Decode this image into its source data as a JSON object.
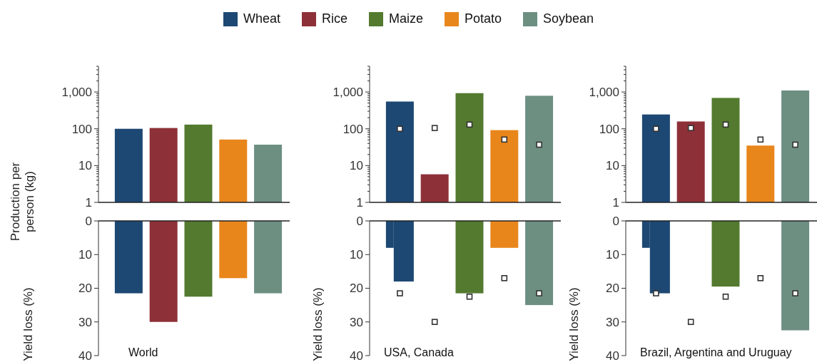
{
  "chart_data": [
    {
      "type": "bar",
      "ylabel": "Production per person (kg)",
      "legend": "top",
      "categories": [
        null,
        null,
        null,
        null,
        null
      ],
      "tick_labels": "y",
      "log": true,
      "ylim": [
        1,
        5000
      ],
      "yticks": [
        1,
        {
          "value": 2,
          "label": null
        },
        {
          "value": 3,
          "label": null
        },
        {
          "value": 4,
          "label": null
        },
        {
          "value": 5,
          "label": null
        },
        {
          "value": 6,
          "label": null
        },
        {
          "value": 7,
          "label": null
        },
        {
          "value": 8,
          "label": null
        },
        {
          "value": 9,
          "label": null
        },
        10,
        {
          "value": 20,
          "label": null
        },
        {
          "value": 30,
          "label": null
        },
        {
          "value": 40,
          "label": null
        },
        {
          "value": 50,
          "label": null
        },
        {
          "value": 60,
          "label": null
        },
        {
          "value": 70,
          "label": null
        },
        {
          "value": 80,
          "label": null
        },
        {
          "value": 90,
          "label": null
        },
        100,
        {
          "value": 200,
          "label": null
        },
        {
          "value": 300,
          "label": null
        },
        {
          "value": 400,
          "label": null
        },
        {
          "value": 500,
          "label": null
        },
        {
          "value": 600,
          "label": null
        },
        {
          "value": 700,
          "label": null
        },
        {
          "value": 800,
          "label": null
        },
        {
          "value": 900,
          "label": null
        },
        {
          "value": 1000,
          "label": "1,000"
        },
        {
          "value": 2000,
          "label": null
        },
        {
          "value": 3000,
          "label": null
        },
        {
          "value": 4000,
          "label": null
        },
        {
          "value": 5000,
          "label": null
        }
      ],
      "series": [
        {
          "name": "Wheat",
          "color": "#1d4873",
          "values": [
            100,
            null,
            null,
            null,
            null
          ]
        },
        {
          "name": "Rice",
          "color": "#8e3038",
          "values": [
            null,
            105,
            null,
            null,
            null
          ]
        },
        {
          "name": "Maize",
          "color": "#537a2f",
          "values": [
            null,
            null,
            130,
            null,
            null
          ]
        },
        {
          "name": "Potato",
          "color": "#e8861c",
          "values": [
            null,
            null,
            null,
            51,
            null
          ]
        },
        {
          "name": "Soybean",
          "color": "#6d8f82",
          "values": [
            null,
            null,
            null,
            null,
            37
          ]
        }
      ]
    },
    {
      "type": "bar",
      "categories": [
        null,
        null,
        null,
        null,
        null
      ],
      "tick_labels": "y",
      "log": true,
      "ylim": [
        1,
        5000
      ],
      "yticks": [
        1,
        {
          "value": 2,
          "label": null
        },
        {
          "value": 3,
          "label": null
        },
        {
          "value": 4,
          "label": null
        },
        {
          "value": 5,
          "label": null
        },
        {
          "value": 6,
          "label": null
        },
        {
          "value": 7,
          "label": null
        },
        {
          "value": 8,
          "label": null
        },
        {
          "value": 9,
          "label": null
        },
        10,
        {
          "value": 20,
          "label": null
        },
        {
          "value": 30,
          "label": null
        },
        {
          "value": 40,
          "label": null
        },
        {
          "value": 50,
          "label": null
        },
        {
          "value": 60,
          "label": null
        },
        {
          "value": 70,
          "label": null
        },
        {
          "value": 80,
          "label": null
        },
        {
          "value": 90,
          "label": null
        },
        100,
        {
          "value": 200,
          "label": null
        },
        {
          "value": 300,
          "label": null
        },
        {
          "value": 400,
          "label": null
        },
        {
          "value": 500,
          "label": null
        },
        {
          "value": 600,
          "label": null
        },
        {
          "value": 700,
          "label": null
        },
        {
          "value": 800,
          "label": null
        },
        {
          "value": 900,
          "label": null
        },
        {
          "value": 1000,
          "label": "1,000"
        },
        {
          "value": 2000,
          "label": null
        },
        {
          "value": 3000,
          "label": null
        },
        {
          "value": 4000,
          "label": null
        },
        {
          "value": 5000,
          "label": null
        }
      ],
      "series": [
        {
          "color": "#1d4873",
          "values": [
            550,
            null,
            null,
            null,
            null
          ]
        },
        {
          "color": "#8e3038",
          "values": [
            null,
            5.8,
            null,
            null,
            null
          ]
        },
        {
          "color": "#537a2f",
          "values": [
            null,
            null,
            930,
            null,
            null
          ]
        },
        {
          "color": "#e8861c",
          "values": [
            null,
            null,
            null,
            92,
            null
          ]
        },
        {
          "color": "#6d8f82",
          "values": [
            null,
            null,
            null,
            null,
            790
          ]
        },
        {
          "type": "scatter",
          "values": [
            100,
            105,
            130,
            51,
            37
          ],
          "color": "#333333",
          "marker": "square"
        }
      ]
    },
    {
      "type": "bar",
      "categories": [
        null,
        null,
        null,
        null,
        null
      ],
      "tick_labels": "y",
      "log": true,
      "ylim": [
        1,
        5000
      ],
      "yticks": [
        1,
        {
          "value": 2,
          "label": null
        },
        {
          "value": 3,
          "label": null
        },
        {
          "value": 4,
          "label": null
        },
        {
          "value": 5,
          "label": null
        },
        {
          "value": 6,
          "label": null
        },
        {
          "value": 7,
          "label": null
        },
        {
          "value": 8,
          "label": null
        },
        {
          "value": 9,
          "label": null
        },
        10,
        {
          "value": 20,
          "label": null
        },
        {
          "value": 30,
          "label": null
        },
        {
          "value": 40,
          "label": null
        },
        {
          "value": 50,
          "label": null
        },
        {
          "value": 60,
          "label": null
        },
        {
          "value": 70,
          "label": null
        },
        {
          "value": 80,
          "label": null
        },
        {
          "value": 90,
          "label": null
        },
        100,
        {
          "value": 200,
          "label": null
        },
        {
          "value": 300,
          "label": null
        },
        {
          "value": 400,
          "label": null
        },
        {
          "value": 500,
          "label": null
        },
        {
          "value": 600,
          "label": null
        },
        {
          "value": 700,
          "label": null
        },
        {
          "value": 800,
          "label": null
        },
        {
          "value": 900,
          "label": null
        },
        {
          "value": 1000,
          "label": "1,000"
        },
        {
          "value": 2000,
          "label": null
        },
        {
          "value": 3000,
          "label": null
        },
        {
          "value": 4000,
          "label": null
        },
        {
          "value": 5000,
          "label": null
        }
      ],
      "series": [
        {
          "color": "#1d4873",
          "values": [
            245,
            null,
            null,
            null,
            null
          ]
        },
        {
          "color": "#8e3038",
          "values": [
            null,
            158,
            null,
            null,
            null
          ]
        },
        {
          "color": "#537a2f",
          "values": [
            null,
            null,
            690,
            null,
            null
          ]
        },
        {
          "color": "#e8861c",
          "values": [
            null,
            null,
            null,
            35,
            null
          ]
        },
        {
          "color": "#6d8f82",
          "values": [
            null,
            null,
            null,
            null,
            1100
          ]
        },
        {
          "type": "scatter",
          "values": [
            100,
            105,
            130,
            51,
            37
          ],
          "color": "#333333",
          "marker": "square"
        }
      ]
    },
    {
      "type": "bar",
      "ylabel": "Yield loss (%)",
      "annotations": [
        "World"
      ],
      "categories": [
        null,
        null,
        null,
        null,
        null
      ],
      "tick_labels": "y",
      "ylim": [
        40,
        0
      ],
      "yticks": [
        0,
        10,
        20,
        30,
        40
      ],
      "series": [
        {
          "color": "#1d4873",
          "values": [
            21.5,
            null,
            null,
            null,
            null
          ]
        },
        {
          "color": "#8e3038",
          "values": [
            null,
            30,
            null,
            null,
            null
          ]
        },
        {
          "color": "#537a2f",
          "values": [
            null,
            null,
            22.5,
            null,
            null
          ]
        },
        {
          "color": "#e8861c",
          "values": [
            null,
            null,
            null,
            17,
            null
          ]
        },
        {
          "color": "#6d8f82",
          "values": [
            null,
            null,
            null,
            null,
            21.5
          ]
        }
      ]
    },
    {
      "type": "bar",
      "ylabel": "Yield loss (%)",
      "annotations": [
        "USA, Canada"
      ],
      "categories": [
        null,
        null,
        null,
        null,
        null
      ],
      "tick_labels": "y",
      "ylim": [
        40,
        0
      ],
      "yticks": [
        0,
        10,
        20,
        30,
        40
      ],
      "series": [
        {
          "color": "#1d4873",
          "values": [
            8,
            null,
            null,
            null,
            null
          ]
        },
        {
          "color": "#1d4873",
          "values": [
            18,
            null,
            null,
            null,
            null
          ]
        },
        {
          "color": "#537a2f",
          "values": [
            null,
            null,
            21.5,
            null,
            null
          ]
        },
        {
          "color": "#e8861c",
          "values": [
            null,
            null,
            null,
            8,
            null
          ]
        },
        {
          "color": "#6d8f82",
          "values": [
            null,
            null,
            null,
            null,
            25
          ]
        },
        {
          "type": "scatter",
          "values": [
            21.5,
            30,
            22.5,
            17,
            21.5
          ],
          "color": "#333333",
          "marker": "square"
        }
      ]
    },
    {
      "type": "bar",
      "ylabel": "Yield loss (%)",
      "annotations": [
        "Brazil, Argentina and Uruguay"
      ],
      "categories": [
        null,
        null,
        null,
        null,
        null
      ],
      "tick_labels": "y",
      "ylim": [
        40,
        0
      ],
      "yticks": [
        0,
        10,
        20,
        30,
        40
      ],
      "series": [
        {
          "color": "#1d4873",
          "values": [
            8,
            null,
            null,
            null,
            null
          ]
        },
        {
          "color": "#1d4873",
          "values": [
            21.5,
            null,
            null,
            null,
            null
          ]
        },
        {
          "color": "#537a2f",
          "values": [
            null,
            null,
            19.5,
            null,
            null
          ]
        },
        {
          "color": "#6d8f82",
          "values": [
            null,
            null,
            null,
            null,
            32.5
          ]
        },
        {
          "type": "scatter",
          "values": [
            21.5,
            30,
            22.5,
            17,
            21.5
          ],
          "color": "#333333",
          "marker": "square"
        }
      ]
    }
  ]
}
